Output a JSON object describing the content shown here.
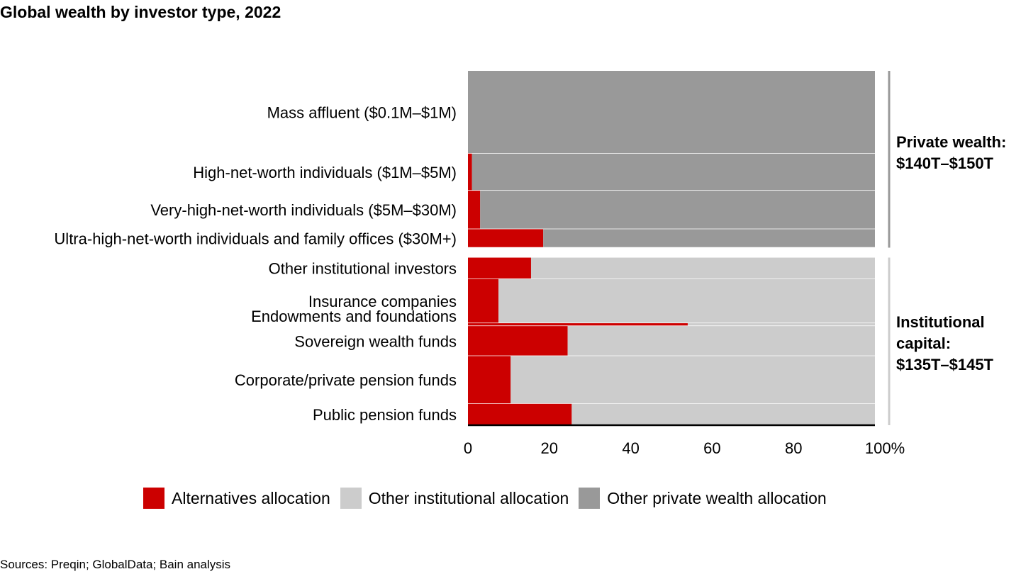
{
  "title": "Global wealth by investor type, 2022",
  "source": "Sources: Preqin; GlobalData; Bain analysis",
  "colors": {
    "alternatives": "#cc0000",
    "other_institutional": "#cccccc",
    "other_private": "#999999"
  },
  "groups": [
    {
      "name": "private",
      "lines": [
        "Private wealth:",
        "$140T–$150T"
      ]
    },
    {
      "name": "institutional",
      "lines": [
        "Institutional",
        "capital:",
        "$135T–$145T"
      ]
    }
  ],
  "legend": [
    {
      "key": "alternatives",
      "label": "Alternatives allocation"
    },
    {
      "key": "other_institutional",
      "label": "Other institutional allocation"
    },
    {
      "key": "other_private",
      "label": "Other private wealth allocation"
    }
  ],
  "chart_data": {
    "type": "bar",
    "orientation": "horizontal",
    "stacked": true,
    "variable_width": true,
    "xlim": [
      0,
      100
    ],
    "x_ticks": [
      "0",
      "20",
      "40",
      "60",
      "80",
      "100%"
    ],
    "categories": [
      "Mass affluent ($0.1M–$1M)",
      "High-net-worth individuals ($1M–$5M)",
      "Very-high-net-worth individuals ($5M–$30M)",
      "Ultra-high-net-worth individuals and family offices ($30M+)",
      "Other institutional investors",
      "Insurance companies",
      "Endowments and foundations",
      "Sovereign wealth funds",
      "Corporate/private pension funds",
      "Public pension funds"
    ],
    "group_of_category": [
      "private",
      "private",
      "private",
      "private",
      "institutional",
      "institutional",
      "institutional",
      "institutional",
      "institutional",
      "institutional"
    ],
    "relative_size": [
      116,
      52,
      54,
      26,
      30,
      62,
      4,
      42,
      67,
      30
    ],
    "series": [
      {
        "name": "Alternatives allocation",
        "values": [
          0,
          1,
          3,
          18.5,
          15.5,
          7.5,
          54,
          24.5,
          10.5,
          25.5
        ]
      },
      {
        "name": "Other institutional allocation",
        "values": [
          0,
          0,
          0,
          0,
          84.5,
          92.5,
          46,
          75.5,
          89.5,
          74.5
        ]
      },
      {
        "name": "Other private wealth allocation",
        "values": [
          100,
          99,
          97,
          81.5,
          0,
          0,
          0,
          0,
          0,
          0
        ]
      }
    ]
  }
}
